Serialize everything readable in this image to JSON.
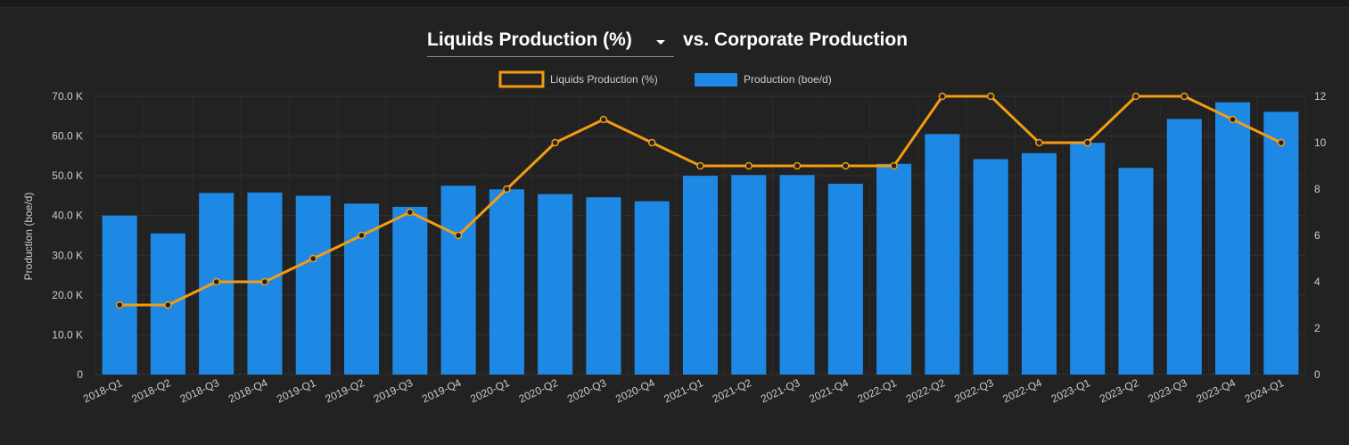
{
  "header": {
    "metric_select_label": "Liquids Production (%)",
    "title_suffix": "vs. Corporate Production"
  },
  "colors": {
    "bar": "#1e88e5",
    "line": "#f39c12",
    "background": "#222222",
    "grid": "#333333",
    "text": "#cccccc"
  },
  "chart_data": {
    "type": "bar",
    "categories": [
      "2018-Q1",
      "2018-Q2",
      "2018-Q3",
      "2018-Q4",
      "2019-Q1",
      "2019-Q2",
      "2019-Q3",
      "2019-Q4",
      "2020-Q1",
      "2020-Q2",
      "2020-Q3",
      "2020-Q4",
      "2021-Q1",
      "2021-Q2",
      "2021-Q3",
      "2021-Q4",
      "2022-Q1",
      "2022-Q2",
      "2022-Q3",
      "2022-Q4",
      "2023-Q1",
      "2023-Q2",
      "2023-Q3",
      "2023-Q4",
      "2024-Q1"
    ],
    "series": [
      {
        "name": "Production (boe/d)",
        "type": "bar",
        "axis": "left",
        "values": [
          40000,
          35500,
          45700,
          45800,
          45000,
          43000,
          42200,
          47500,
          46600,
          45400,
          44600,
          43600,
          50000,
          50200,
          50200,
          48000,
          53000,
          60500,
          54200,
          55700,
          58300,
          52000,
          64300,
          68500,
          66100
        ]
      },
      {
        "name": "Liquids Production (%)",
        "type": "line",
        "axis": "right",
        "values": [
          3,
          3,
          4,
          4,
          5,
          6,
          7,
          6,
          8,
          10,
          11,
          10,
          9,
          9,
          9,
          9,
          9,
          12,
          12,
          10,
          10,
          12,
          12,
          11,
          10
        ]
      }
    ],
    "legend": {
      "position": "top-center",
      "items": [
        "Liquids Production (%)",
        "Production (boe/d)"
      ]
    },
    "ylabel": "Production (boe/d)",
    "ylim": [
      0,
      70000
    ],
    "y_ticks": [
      "0",
      "10.0 K",
      "20.0 K",
      "30.0 K",
      "40.0 K",
      "50.0 K",
      "60.0 K",
      "70.0 K"
    ],
    "y2lim": [
      0,
      12
    ],
    "y2_ticks": [
      "0",
      "2",
      "4",
      "6",
      "8",
      "10",
      "12"
    ],
    "grid": true
  }
}
